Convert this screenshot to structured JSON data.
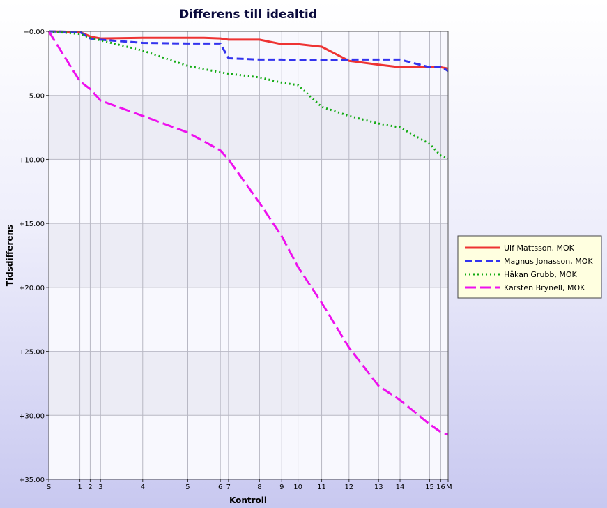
{
  "chart_data": {
    "type": "line",
    "title": "Differens till idealtid",
    "xlabel": "Kontroll",
    "ylabel": "Tidsdifferens",
    "ylim": [
      0,
      35
    ],
    "y_inverted": true,
    "y_ticks": [
      0,
      5,
      10,
      15,
      20,
      25,
      30,
      35
    ],
    "y_tick_labels": [
      "+0.00",
      "+5.00",
      "+10.00",
      "+15.00",
      "+20.00",
      "+25.00",
      "+30.00",
      "+35.00"
    ],
    "x_categories": [
      "S",
      "1",
      "2",
      "3",
      "4",
      "5",
      "6",
      "7",
      "8",
      "9",
      "10",
      "11",
      "12",
      "13",
      "14",
      "15",
      "16",
      "M"
    ],
    "x_positions": [
      0,
      4.2,
      5.6,
      7.0,
      12.7,
      18.8,
      23.2,
      24.3,
      28.5,
      31.5,
      33.7,
      36.9,
      40.6,
      44.6,
      47.5,
      51.5,
      53.0,
      54.0
    ],
    "xlim": [
      0,
      54
    ],
    "grid": true,
    "legend_position": "right",
    "series": [
      {
        "name": "Ulf Mattsson, MOK",
        "color": "#ee3333",
        "style": "solid",
        "points": [
          [
            0,
            0
          ],
          [
            4.2,
            0.05
          ],
          [
            5.6,
            0.4
          ],
          [
            7.0,
            0.55
          ],
          [
            12.7,
            0.5
          ],
          [
            18.8,
            0.5
          ],
          [
            21.0,
            0.5
          ],
          [
            23.2,
            0.55
          ],
          [
            24.3,
            0.65
          ],
          [
            28.5,
            0.65
          ],
          [
            31.5,
            1.0
          ],
          [
            33.7,
            1.0
          ],
          [
            36.9,
            1.2
          ],
          [
            40.6,
            2.3
          ],
          [
            44.6,
            2.6
          ],
          [
            47.5,
            2.8
          ],
          [
            51.5,
            2.8
          ],
          [
            53.0,
            2.8
          ],
          [
            54.0,
            2.9
          ]
        ]
      },
      {
        "name": "Magnus Jonasson, MOK",
        "color": "#3333ee",
        "style": "dashed",
        "points": [
          [
            0,
            0
          ],
          [
            4.2,
            0.05
          ],
          [
            5.6,
            0.55
          ],
          [
            7.0,
            0.65
          ],
          [
            12.7,
            0.9
          ],
          [
            18.8,
            0.95
          ],
          [
            23.2,
            0.95
          ],
          [
            24.3,
            2.1
          ],
          [
            28.5,
            2.2
          ],
          [
            31.5,
            2.2
          ],
          [
            33.7,
            2.25
          ],
          [
            36.9,
            2.25
          ],
          [
            40.6,
            2.2
          ],
          [
            44.6,
            2.2
          ],
          [
            47.5,
            2.2
          ],
          [
            51.5,
            2.8
          ],
          [
            53.0,
            2.75
          ],
          [
            54.0,
            3.1
          ]
        ]
      },
      {
        "name": "Håkan Grubb, MOK",
        "color": "#11aa11",
        "style": "dotted",
        "points": [
          [
            0,
            0
          ],
          [
            4.2,
            0.2
          ],
          [
            5.6,
            0.5
          ],
          [
            7.0,
            0.7
          ],
          [
            12.7,
            1.5
          ],
          [
            18.8,
            2.7
          ],
          [
            23.2,
            3.2
          ],
          [
            24.3,
            3.3
          ],
          [
            28.5,
            3.6
          ],
          [
            31.5,
            4.0
          ],
          [
            33.7,
            4.2
          ],
          [
            36.9,
            5.9
          ],
          [
            40.6,
            6.6
          ],
          [
            44.6,
            7.2
          ],
          [
            47.5,
            7.5
          ],
          [
            51.5,
            8.8
          ],
          [
            53.0,
            9.7
          ],
          [
            54.0,
            9.9
          ]
        ]
      },
      {
        "name": "Karsten Brynell, MOK",
        "color": "#ee11ee",
        "style": "longdash",
        "points": [
          [
            0,
            0
          ],
          [
            4.2,
            3.9
          ],
          [
            5.6,
            4.5
          ],
          [
            7.0,
            5.4
          ],
          [
            12.7,
            6.6
          ],
          [
            18.8,
            7.9
          ],
          [
            23.2,
            9.3
          ],
          [
            24.3,
            10.0
          ],
          [
            28.5,
            13.4
          ],
          [
            31.5,
            16.0
          ],
          [
            33.7,
            18.4
          ],
          [
            36.9,
            21.2
          ],
          [
            40.6,
            24.7
          ],
          [
            44.6,
            27.7
          ],
          [
            47.5,
            28.8
          ],
          [
            51.5,
            30.7
          ],
          [
            53.0,
            31.3
          ],
          [
            54.0,
            31.5
          ]
        ]
      }
    ]
  }
}
